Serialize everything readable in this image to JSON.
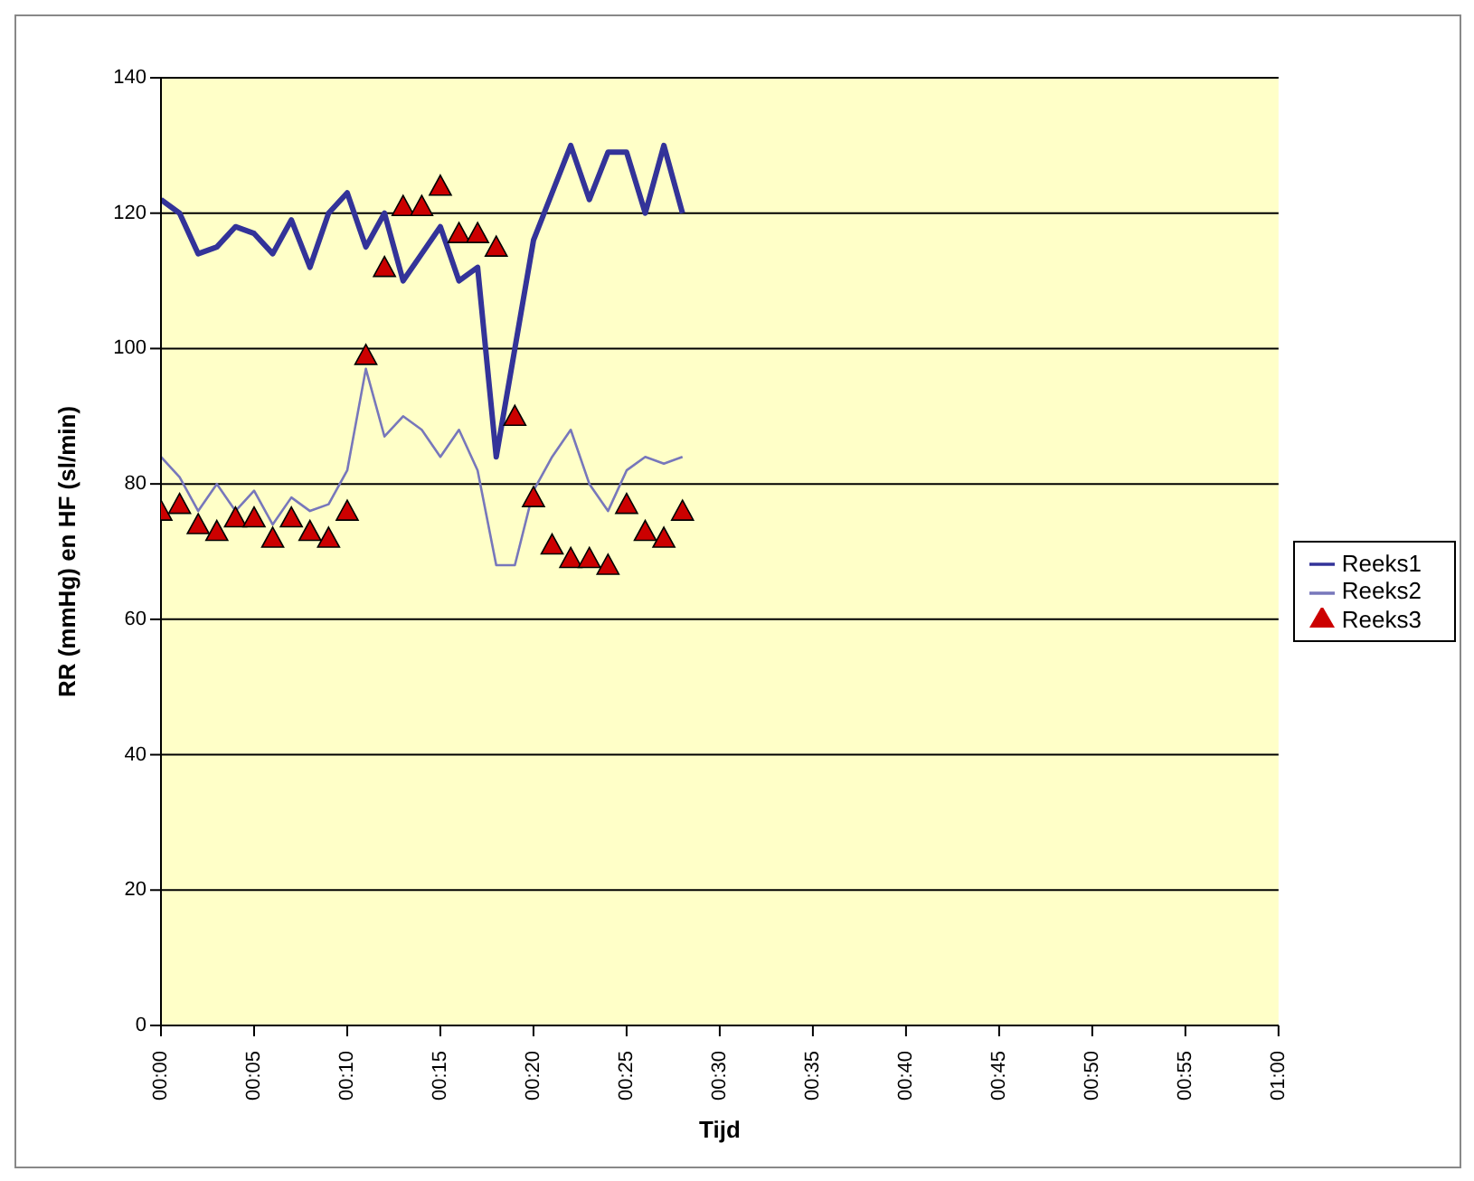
{
  "chart_data": {
    "type": "line",
    "xlabel": "Tijd",
    "ylabel": "RR (mmHg) en HF (sl/min)",
    "x": [
      0,
      1,
      2,
      3,
      4,
      5,
      6,
      7,
      8,
      9,
      10,
      11,
      12,
      13,
      14,
      15,
      16,
      17,
      18,
      19,
      20,
      21,
      22,
      23,
      24,
      25,
      26,
      27,
      28
    ],
    "series": [
      {
        "name": "Reeks1",
        "color": "#333399",
        "marker": "none",
        "values": [
          122,
          120,
          114,
          115,
          118,
          117,
          114,
          119,
          112,
          120,
          123,
          115,
          120,
          110,
          114,
          118,
          110,
          112,
          84,
          100,
          116,
          123,
          130,
          122,
          129,
          129,
          120,
          130,
          120
        ]
      },
      {
        "name": "Reeks2",
        "color": "#7777bb",
        "marker": "none",
        "values": [
          84,
          81,
          76,
          80,
          76,
          79,
          74,
          78,
          76,
          77,
          82,
          97,
          87,
          90,
          88,
          84,
          88,
          82,
          68,
          68,
          79,
          84,
          88,
          80,
          76,
          82,
          84,
          83,
          84
        ]
      },
      {
        "name": "Reeks3",
        "type": "scatter",
        "color": "#cc0000",
        "marker": "triangle",
        "values": [
          76,
          77,
          74,
          73,
          75,
          75,
          72,
          75,
          73,
          72,
          76,
          99,
          112,
          121,
          121,
          124,
          117,
          117,
          115,
          90,
          78,
          71,
          69,
          69,
          68,
          77,
          73,
          72,
          76
        ]
      }
    ],
    "xlim": [
      0,
      60
    ],
    "xticks": [
      {
        "value": 0,
        "label": "00:00"
      },
      {
        "value": 5,
        "label": "00:05"
      },
      {
        "value": 10,
        "label": "00:10"
      },
      {
        "value": 15,
        "label": "00:15"
      },
      {
        "value": 20,
        "label": "00:20"
      },
      {
        "value": 25,
        "label": "00:25"
      },
      {
        "value": 30,
        "label": "00:30"
      },
      {
        "value": 35,
        "label": "00:35"
      },
      {
        "value": 40,
        "label": "00:40"
      },
      {
        "value": 45,
        "label": "00:45"
      },
      {
        "value": 50,
        "label": "00:50"
      },
      {
        "value": 55,
        "label": "00:55"
      },
      {
        "value": 60,
        "label": "01:00"
      }
    ],
    "ylim": [
      0,
      140
    ],
    "yticks": [
      0,
      20,
      40,
      60,
      80,
      100,
      120,
      140
    ],
    "grid": "y",
    "legend": "right"
  }
}
